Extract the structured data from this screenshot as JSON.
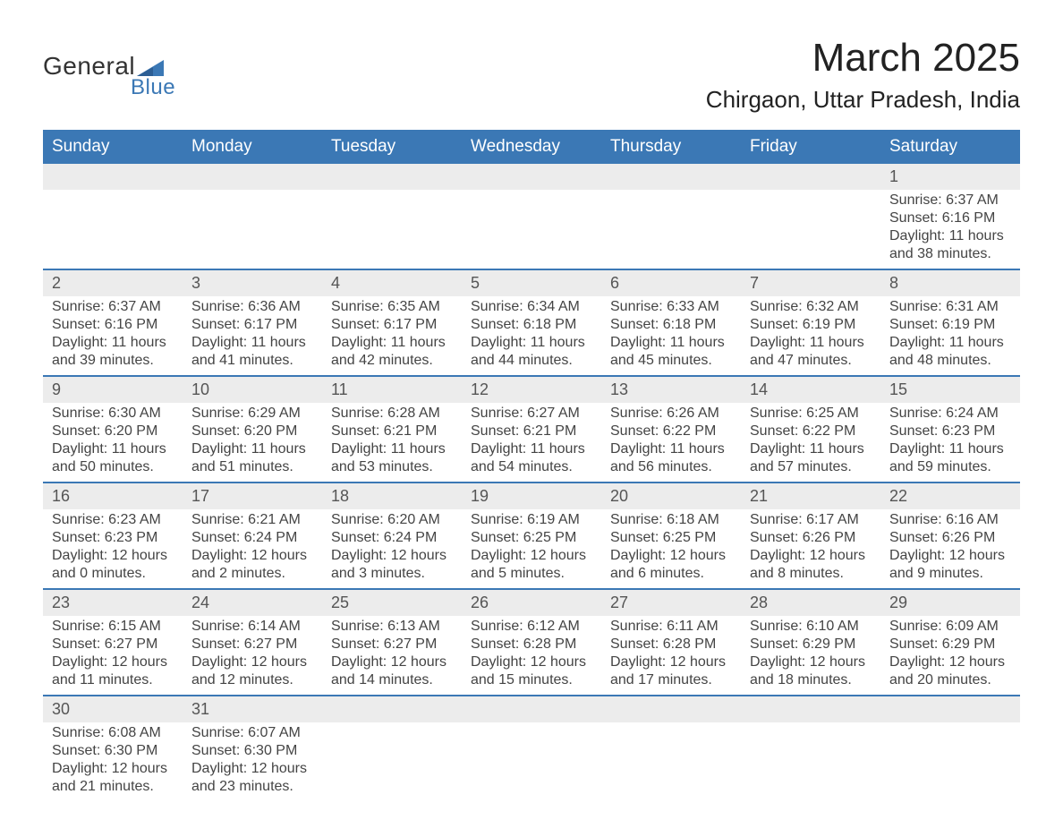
{
  "logo": {
    "text1": "General",
    "text2": "Blue"
  },
  "title": "March 2025",
  "location": "Chirgaon, Uttar Pradesh, India",
  "colors": {
    "header_bg": "#3b78b5",
    "header_text": "#ffffff",
    "daynum_bg": "#ececec",
    "row_divider": "#3b78b5",
    "body_text": "#444444",
    "logo_accent": "#3b78b5"
  },
  "fonts": {
    "title_size_pt": 33,
    "location_size_pt": 20,
    "header_size_pt": 14,
    "daynum_size_pt": 13,
    "body_size_pt": 12
  },
  "weekdays": [
    "Sunday",
    "Monday",
    "Tuesday",
    "Wednesday",
    "Thursday",
    "Friday",
    "Saturday"
  ],
  "weeks": [
    [
      {
        "day": null
      },
      {
        "day": null
      },
      {
        "day": null
      },
      {
        "day": null
      },
      {
        "day": null
      },
      {
        "day": null
      },
      {
        "day": "1",
        "sunrise": "Sunrise: 6:37 AM",
        "sunset": "Sunset: 6:16 PM",
        "daylight": "Daylight: 11 hours and 38 minutes."
      }
    ],
    [
      {
        "day": "2",
        "sunrise": "Sunrise: 6:37 AM",
        "sunset": "Sunset: 6:16 PM",
        "daylight": "Daylight: 11 hours and 39 minutes."
      },
      {
        "day": "3",
        "sunrise": "Sunrise: 6:36 AM",
        "sunset": "Sunset: 6:17 PM",
        "daylight": "Daylight: 11 hours and 41 minutes."
      },
      {
        "day": "4",
        "sunrise": "Sunrise: 6:35 AM",
        "sunset": "Sunset: 6:17 PM",
        "daylight": "Daylight: 11 hours and 42 minutes."
      },
      {
        "day": "5",
        "sunrise": "Sunrise: 6:34 AM",
        "sunset": "Sunset: 6:18 PM",
        "daylight": "Daylight: 11 hours and 44 minutes."
      },
      {
        "day": "6",
        "sunrise": "Sunrise: 6:33 AM",
        "sunset": "Sunset: 6:18 PM",
        "daylight": "Daylight: 11 hours and 45 minutes."
      },
      {
        "day": "7",
        "sunrise": "Sunrise: 6:32 AM",
        "sunset": "Sunset: 6:19 PM",
        "daylight": "Daylight: 11 hours and 47 minutes."
      },
      {
        "day": "8",
        "sunrise": "Sunrise: 6:31 AM",
        "sunset": "Sunset: 6:19 PM",
        "daylight": "Daylight: 11 hours and 48 minutes."
      }
    ],
    [
      {
        "day": "9",
        "sunrise": "Sunrise: 6:30 AM",
        "sunset": "Sunset: 6:20 PM",
        "daylight": "Daylight: 11 hours and 50 minutes."
      },
      {
        "day": "10",
        "sunrise": "Sunrise: 6:29 AM",
        "sunset": "Sunset: 6:20 PM",
        "daylight": "Daylight: 11 hours and 51 minutes."
      },
      {
        "day": "11",
        "sunrise": "Sunrise: 6:28 AM",
        "sunset": "Sunset: 6:21 PM",
        "daylight": "Daylight: 11 hours and 53 minutes."
      },
      {
        "day": "12",
        "sunrise": "Sunrise: 6:27 AM",
        "sunset": "Sunset: 6:21 PM",
        "daylight": "Daylight: 11 hours and 54 minutes."
      },
      {
        "day": "13",
        "sunrise": "Sunrise: 6:26 AM",
        "sunset": "Sunset: 6:22 PM",
        "daylight": "Daylight: 11 hours and 56 minutes."
      },
      {
        "day": "14",
        "sunrise": "Sunrise: 6:25 AM",
        "sunset": "Sunset: 6:22 PM",
        "daylight": "Daylight: 11 hours and 57 minutes."
      },
      {
        "day": "15",
        "sunrise": "Sunrise: 6:24 AM",
        "sunset": "Sunset: 6:23 PM",
        "daylight": "Daylight: 11 hours and 59 minutes."
      }
    ],
    [
      {
        "day": "16",
        "sunrise": "Sunrise: 6:23 AM",
        "sunset": "Sunset: 6:23 PM",
        "daylight": "Daylight: 12 hours and 0 minutes."
      },
      {
        "day": "17",
        "sunrise": "Sunrise: 6:21 AM",
        "sunset": "Sunset: 6:24 PM",
        "daylight": "Daylight: 12 hours and 2 minutes."
      },
      {
        "day": "18",
        "sunrise": "Sunrise: 6:20 AM",
        "sunset": "Sunset: 6:24 PM",
        "daylight": "Daylight: 12 hours and 3 minutes."
      },
      {
        "day": "19",
        "sunrise": "Sunrise: 6:19 AM",
        "sunset": "Sunset: 6:25 PM",
        "daylight": "Daylight: 12 hours and 5 minutes."
      },
      {
        "day": "20",
        "sunrise": "Sunrise: 6:18 AM",
        "sunset": "Sunset: 6:25 PM",
        "daylight": "Daylight: 12 hours and 6 minutes."
      },
      {
        "day": "21",
        "sunrise": "Sunrise: 6:17 AM",
        "sunset": "Sunset: 6:26 PM",
        "daylight": "Daylight: 12 hours and 8 minutes."
      },
      {
        "day": "22",
        "sunrise": "Sunrise: 6:16 AM",
        "sunset": "Sunset: 6:26 PM",
        "daylight": "Daylight: 12 hours and 9 minutes."
      }
    ],
    [
      {
        "day": "23",
        "sunrise": "Sunrise: 6:15 AM",
        "sunset": "Sunset: 6:27 PM",
        "daylight": "Daylight: 12 hours and 11 minutes."
      },
      {
        "day": "24",
        "sunrise": "Sunrise: 6:14 AM",
        "sunset": "Sunset: 6:27 PM",
        "daylight": "Daylight: 12 hours and 12 minutes."
      },
      {
        "day": "25",
        "sunrise": "Sunrise: 6:13 AM",
        "sunset": "Sunset: 6:27 PM",
        "daylight": "Daylight: 12 hours and 14 minutes."
      },
      {
        "day": "26",
        "sunrise": "Sunrise: 6:12 AM",
        "sunset": "Sunset: 6:28 PM",
        "daylight": "Daylight: 12 hours and 15 minutes."
      },
      {
        "day": "27",
        "sunrise": "Sunrise: 6:11 AM",
        "sunset": "Sunset: 6:28 PM",
        "daylight": "Daylight: 12 hours and 17 minutes."
      },
      {
        "day": "28",
        "sunrise": "Sunrise: 6:10 AM",
        "sunset": "Sunset: 6:29 PM",
        "daylight": "Daylight: 12 hours and 18 minutes."
      },
      {
        "day": "29",
        "sunrise": "Sunrise: 6:09 AM",
        "sunset": "Sunset: 6:29 PM",
        "daylight": "Daylight: 12 hours and 20 minutes."
      }
    ],
    [
      {
        "day": "30",
        "sunrise": "Sunrise: 6:08 AM",
        "sunset": "Sunset: 6:30 PM",
        "daylight": "Daylight: 12 hours and 21 minutes."
      },
      {
        "day": "31",
        "sunrise": "Sunrise: 6:07 AM",
        "sunset": "Sunset: 6:30 PM",
        "daylight": "Daylight: 12 hours and 23 minutes."
      },
      {
        "day": null
      },
      {
        "day": null
      },
      {
        "day": null
      },
      {
        "day": null
      },
      {
        "day": null
      }
    ]
  ]
}
